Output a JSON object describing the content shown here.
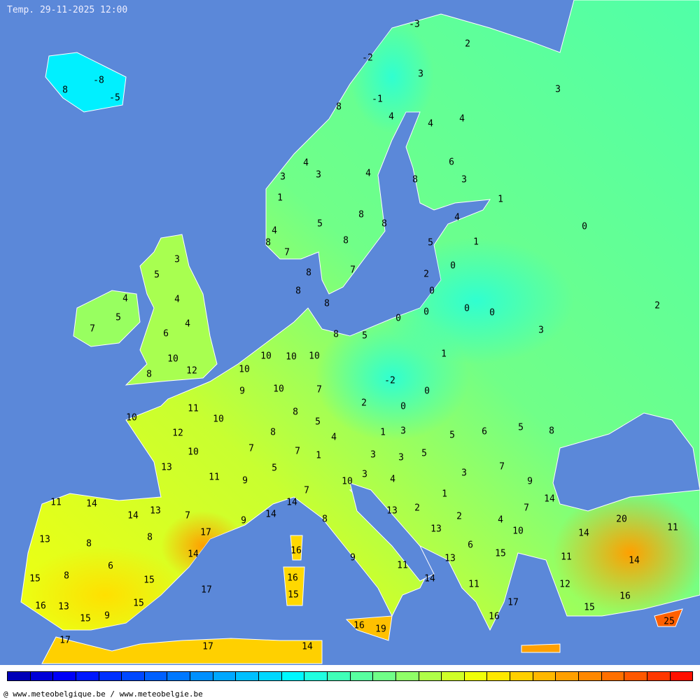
{
  "title": "Temp. 29-11-2025 12:00",
  "credit": "@ www.meteobelgique.be / www.meteobelgie.be",
  "colors": {
    "sea": "#5b88d9",
    "colorbar": [
      "#0000b8",
      "#0000d8",
      "#0000f8",
      "#0018ff",
      "#0030ff",
      "#0048ff",
      "#0060ff",
      "#0078ff",
      "#0090ff",
      "#00a8ff",
      "#00c0ff",
      "#00d8ff",
      "#00f8ff",
      "#20ffe0",
      "#40ffb8",
      "#58ffa0",
      "#70ff88",
      "#90ff68",
      "#b0ff48",
      "#d0ff28",
      "#f0ff08",
      "#ffe800",
      "#ffd000",
      "#ffb800",
      "#ffa000",
      "#ff8800",
      "#ff7000",
      "#ff5800",
      "#ff3800",
      "#ff1000"
    ]
  },
  "map": {
    "labels": [
      "-3",
      "-2",
      "2",
      "3",
      "3",
      "-1",
      "8",
      "4",
      "4",
      "4",
      "-8",
      "8",
      "-5",
      "4",
      "3",
      "4",
      "3",
      "6",
      "8",
      "3",
      "1",
      "1",
      "5",
      "8",
      "8",
      "4",
      "0",
      "4",
      "8",
      "8",
      "5",
      "1",
      "7",
      "3",
      "7",
      "0",
      "8",
      "5",
      "2",
      "8",
      "0",
      "4",
      "4",
      "8",
      "5",
      "4",
      "0",
      "0",
      "0",
      "2",
      "0",
      "7",
      "6",
      "8",
      "5",
      "3",
      "10",
      "10",
      "10",
      "10",
      "12",
      "8",
      "10",
      "1",
      "-2",
      "9",
      "10",
      "7",
      "0",
      "2",
      "0",
      "11",
      "8",
      "10",
      "10",
      "5",
      "12",
      "8",
      "1",
      "3",
      "4",
      "5",
      "6",
      "5",
      "8",
      "7",
      "7",
      "10",
      "3",
      "3",
      "5",
      "1",
      "13",
      "5",
      "7",
      "3",
      "11",
      "9",
      "3",
      "4",
      "10",
      "9",
      "7",
      "1",
      "11",
      "14",
      "14",
      "14",
      "13",
      "14",
      "13",
      "2",
      "7",
      "7",
      "14",
      "2",
      "4",
      "20",
      "11",
      "9",
      "8",
      "13",
      "17",
      "10",
      "14",
      "13",
      "8",
      "8",
      "6",
      "15",
      "16",
      "14",
      "11",
      "9",
      "13",
      "14",
      "6",
      "11",
      "15",
      "8",
      "15",
      "16",
      "14",
      "11",
      "12",
      "17",
      "15",
      "17",
      "16",
      "16",
      "13",
      "15",
      "15",
      "9",
      "15",
      "16",
      "25",
      "16",
      "19",
      "17",
      "17",
      "14"
    ]
  }
}
